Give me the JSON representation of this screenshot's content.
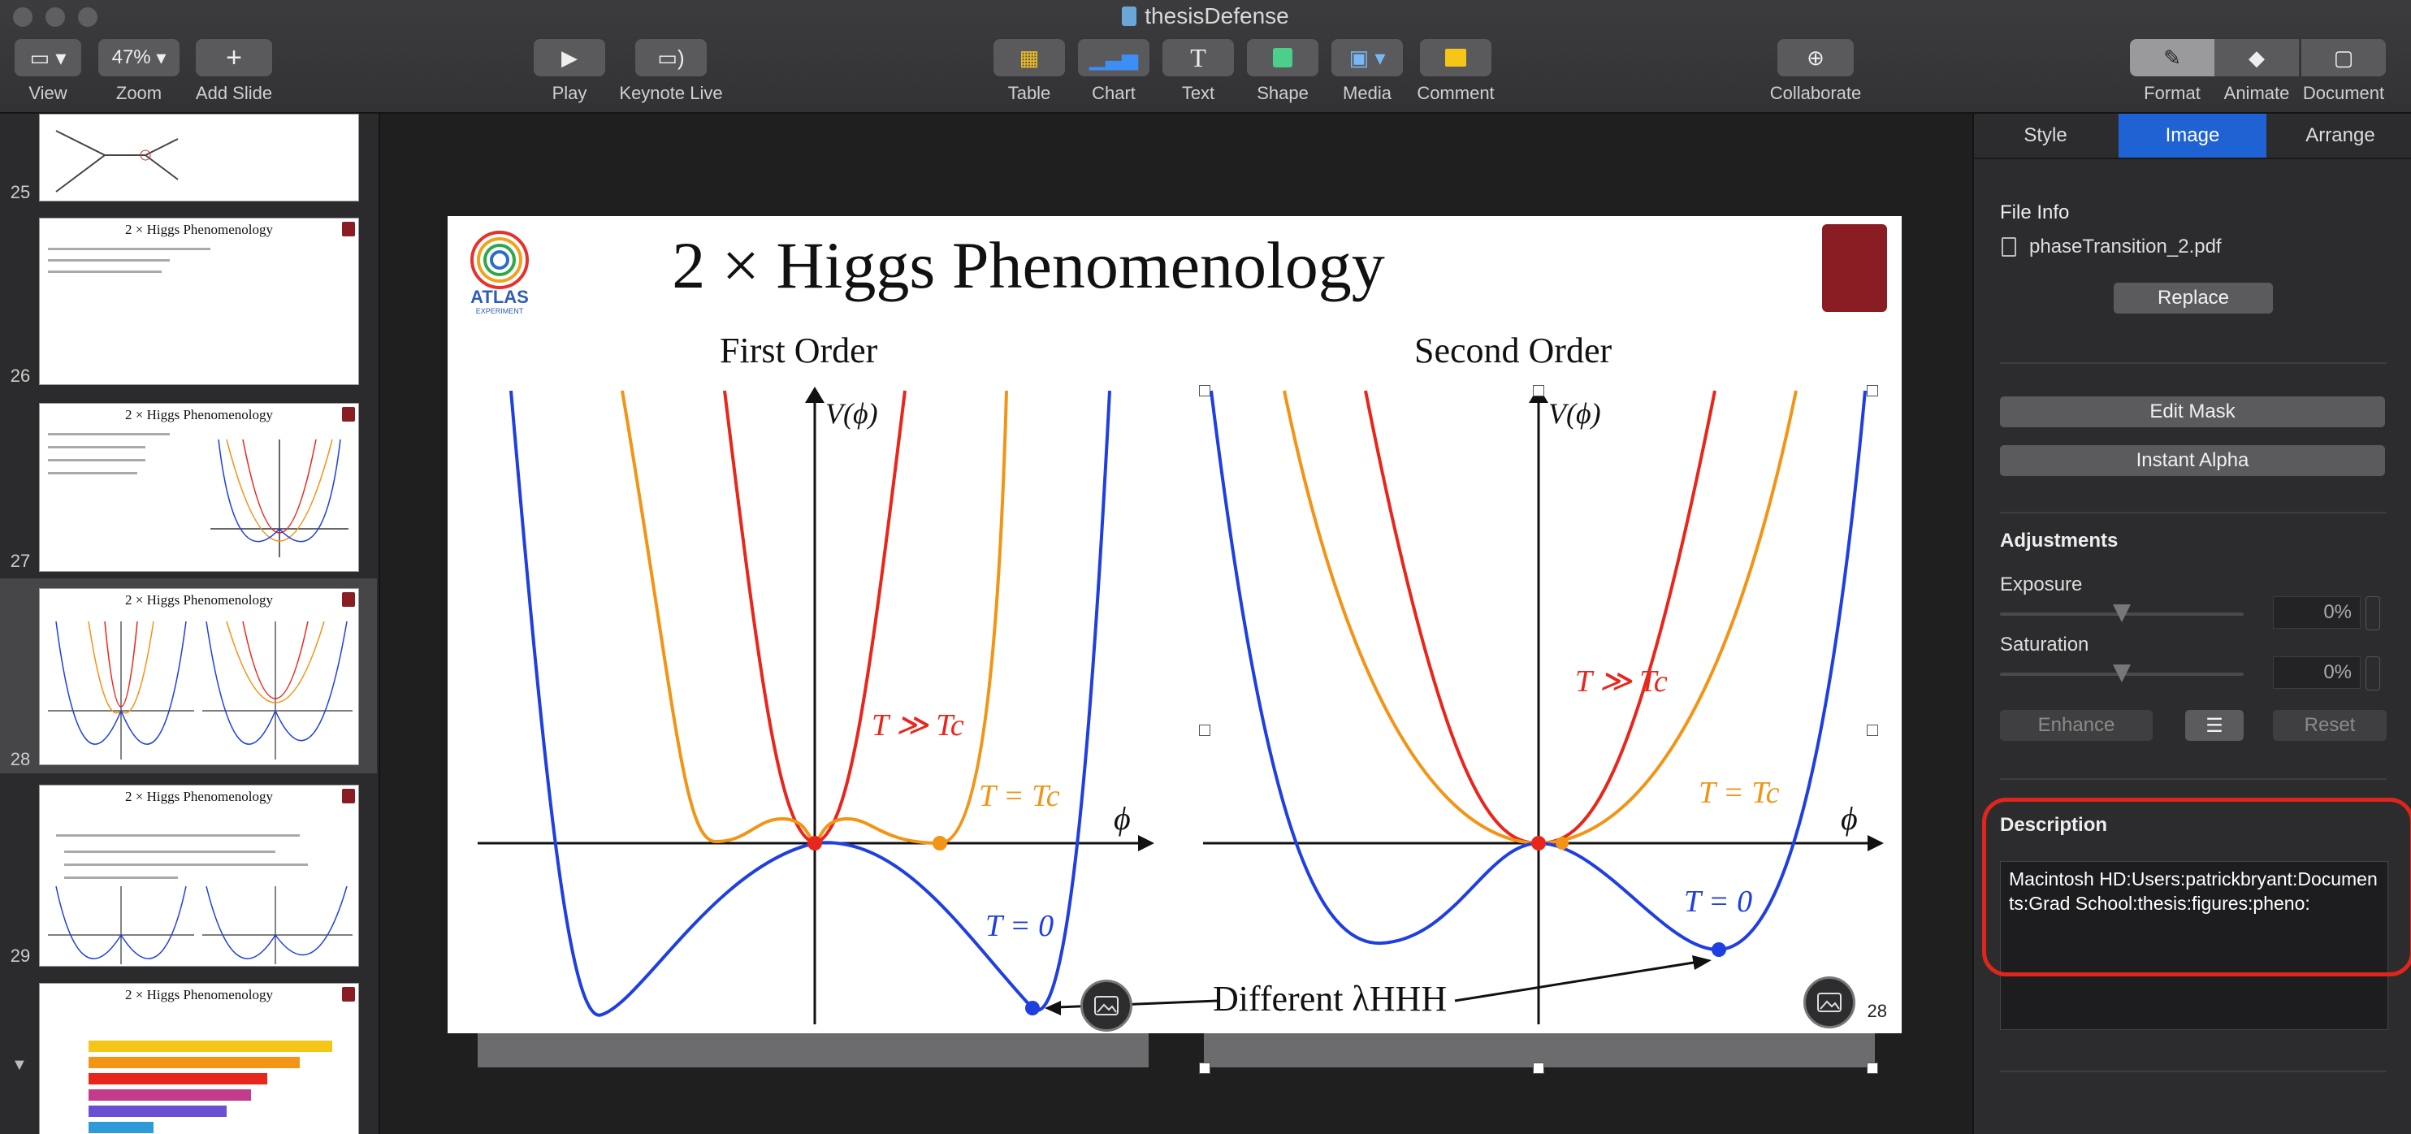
{
  "window": {
    "title": "thesisDefense"
  },
  "toolbar": {
    "view": "View",
    "zoom_value": "47%",
    "zoom": "Zoom",
    "add_slide": "Add Slide",
    "play": "Play",
    "keynote_live": "Keynote Live",
    "table": "Table",
    "chart": "Chart",
    "text": "Text",
    "shape": "Shape",
    "media": "Media",
    "comment": "Comment",
    "collaborate": "Collaborate",
    "format": "Format",
    "animate": "Animate",
    "document": "Document"
  },
  "navigator": {
    "slides": [
      {
        "num": "25",
        "title": ""
      },
      {
        "num": "26",
        "title": "2 × Higgs Phenomenology"
      },
      {
        "num": "27",
        "title": "2 × Higgs Phenomenology"
      },
      {
        "num": "28",
        "title": "2 × Higgs Phenomenology"
      },
      {
        "num": "29",
        "title": "2 × Higgs Phenomenology"
      },
      {
        "num": "",
        "title": "2 × Higgs Phenomenology"
      }
    ]
  },
  "slide": {
    "title": "2 × Higgs Phenomenology",
    "logo": "ATLAS",
    "logo_sub": "EXPERIMENT",
    "page_number": "28",
    "panel_left_title": "First Order",
    "panel_right_title": "Second Order",
    "axis_y": "V(ϕ)",
    "axis_x": "ϕ",
    "label_high": "T ≫ Tc",
    "label_crit": "T = Tc",
    "label_zero": "T = 0",
    "annotation": "Different λHHH",
    "colors": {
      "high": "#e8261c",
      "crit": "#f29416",
      "zero": "#1f3fe0"
    }
  },
  "inspector": {
    "tabs": [
      "Style",
      "Image",
      "Arrange"
    ],
    "active_tab": "Image",
    "file_info_heading": "File Info",
    "file_name": "phaseTransition_2.pdf",
    "replace": "Replace",
    "edit_mask": "Edit Mask",
    "instant_alpha": "Instant Alpha",
    "adjustments_heading": "Adjustments",
    "exposure_label": "Exposure",
    "exposure_value": "0%",
    "saturation_label": "Saturation",
    "saturation_value": "0%",
    "enhance": "Enhance",
    "reset": "Reset",
    "description_heading": "Description",
    "description_text": "Macintosh HD:Users:patrickbryant:Documents:Grad School:thesis:figures:pheno:"
  }
}
